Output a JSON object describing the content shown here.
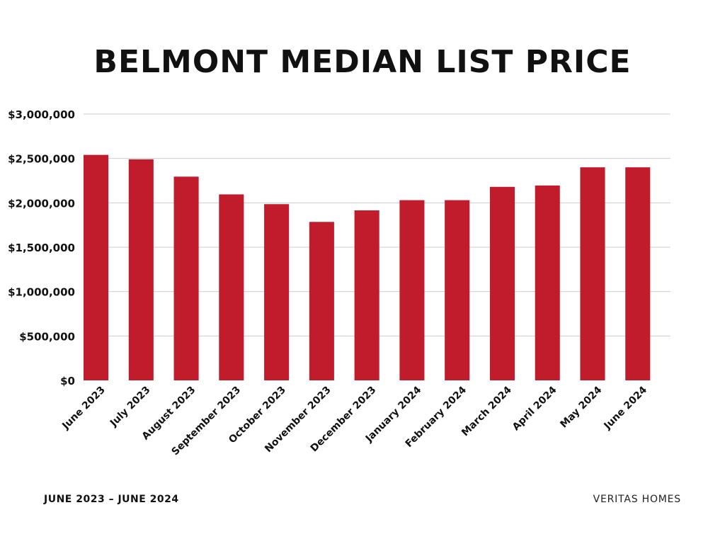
{
  "footer": {
    "left": "JUNE 2023 – JUNE 2024",
    "right": "VERITAS HOMES"
  },
  "colors": {
    "bar": "#c11c2b",
    "grid": "#cccccc",
    "text": "#111111"
  },
  "chart_data": {
    "type": "bar",
    "title": "BELMONT MEDIAN LIST PRICE",
    "xlabel": "",
    "ylabel": "",
    "categories": [
      "June 2023",
      "July 2023",
      "August 2023",
      "September 2023",
      "October 2023",
      "November 2023",
      "December 2023",
      "January 2024",
      "February 2024",
      "March 2024",
      "April 2024",
      "May 2024",
      "June 2024"
    ],
    "values": [
      2540000,
      2490000,
      2295000,
      2095000,
      1985000,
      1785000,
      1915000,
      2030000,
      2030000,
      2180000,
      2195000,
      2400000,
      2400000
    ],
    "ylim": [
      0,
      3000000
    ],
    "yticks": [
      0,
      500000,
      1000000,
      1500000,
      2000000,
      2500000,
      3000000
    ],
    "ytick_labels": [
      "$0",
      "$500,000",
      "$1,000,000",
      "$1,500,000",
      "$2,000,000",
      "$2,500,000",
      "$3,000,000"
    ],
    "grid": true,
    "legend": "none"
  }
}
